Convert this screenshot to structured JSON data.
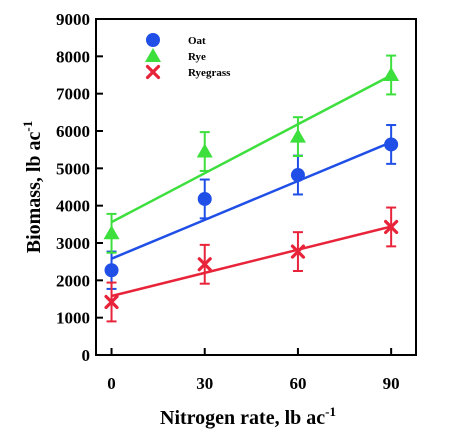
{
  "chart_data": {
    "type": "scatter",
    "title": "",
    "xlabel": "Nitrogen rate, lb ac",
    "xlabel_sup": "-1",
    "ylabel": "Biomass, lb ac",
    "ylabel_sup": "-1",
    "x": [
      0,
      30,
      60,
      90
    ],
    "xticks": [
      "0",
      "30",
      "60",
      "90"
    ],
    "xlim": [
      -5,
      98
    ],
    "yticks": [
      "0",
      "1000",
      "2000",
      "3000",
      "4000",
      "5000",
      "6000",
      "7000",
      "8000",
      "9000"
    ],
    "ylim": [
      0,
      9000
    ],
    "grid": false,
    "legend_position": "top-left",
    "series": [
      {
        "name": "Oat",
        "marker": "circle",
        "color": "#1f4fe6",
        "values": [
          2270,
          4180,
          4820,
          5640
        ],
        "errors": [
          500,
          520,
          520,
          520
        ],
        "fit": [
          2580,
          3620,
          4660,
          5700
        ]
      },
      {
        "name": "Rye",
        "marker": "triangle",
        "color": "#3ddf3d",
        "values": [
          3260,
          5450,
          5850,
          7500
        ],
        "errors": [
          520,
          520,
          520,
          520
        ],
        "fit": [
          3560,
          4870,
          6180,
          7490
        ]
      },
      {
        "name": "Ryegrass",
        "marker": "x",
        "color": "#e8243a",
        "values": [
          1420,
          2430,
          2770,
          3430
        ],
        "errors": [
          520,
          520,
          520,
          520
        ],
        "fit": [
          1580,
          2200,
          2820,
          3440
        ]
      }
    ]
  }
}
